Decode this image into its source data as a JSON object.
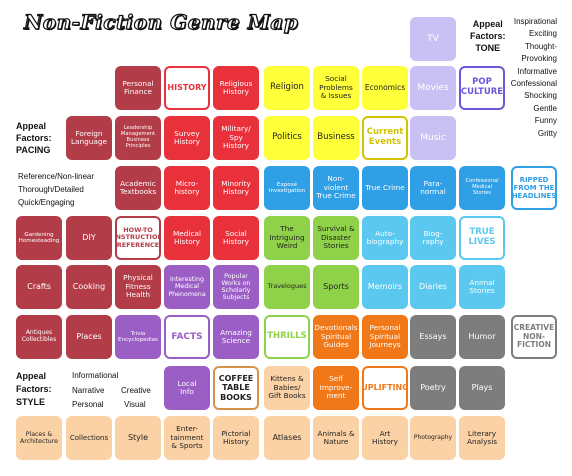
{
  "title": "Non-Fiction Genre Map",
  "appeal_factors": {
    "tone": {
      "label": "Appeal\nFactors:\nTONE",
      "items": [
        "Inspirational",
        "Exciting",
        "Thought-\nProvoking",
        "Informative",
        "Confessional",
        "Shocking",
        "Gentle",
        "Funny",
        "Gritty"
      ]
    },
    "pacing": {
      "label": "Appeal\nFactors:\nPACING",
      "items": [
        "Reference/Non-linear",
        "Thorough/Detailed",
        "Quick/Engaging"
      ]
    },
    "style": {
      "label": "Appeal\nFactors:\nSTYLE",
      "items": [
        "Informational",
        "Narrative",
        "Creative",
        "Personal",
        "Visual"
      ]
    }
  },
  "colors": {
    "maroon": "#b23c48",
    "red": "#e8313b",
    "yellow": "#ffff3a",
    "blue": "#2f9fe6",
    "lightblue": "#5bc8ef",
    "green": "#8fd24a",
    "orange": "#f07818",
    "purple": "#9a5ec4",
    "gray": "#7d7d7d",
    "lavender": "#c9c1f3",
    "peach": "#fbd2a6",
    "pink": "#f6b2b2"
  },
  "tiles": [
    {
      "id": "tv",
      "label": "TV",
      "color": "lavender"
    },
    {
      "id": "personal-finance",
      "label": "Personal\nFinance",
      "color": "maroon"
    },
    {
      "id": "history",
      "label": "HISTORY",
      "color": "red",
      "outline": true
    },
    {
      "id": "religious-history",
      "label": "Religious\nHistory",
      "color": "red"
    },
    {
      "id": "religion",
      "label": "Religion",
      "color": "yellow"
    },
    {
      "id": "social-problems",
      "label": "Social\nProblems\n& Issues",
      "color": "yellow"
    },
    {
      "id": "economics",
      "label": "Economics",
      "color": "yellow"
    },
    {
      "id": "movies",
      "label": "Movies",
      "color": "lavender"
    },
    {
      "id": "pop-culture",
      "label": "POP\nCULTURE",
      "color": "lavender",
      "outline": true
    },
    {
      "id": "foreign-language",
      "label": "Foreign\nLanguage",
      "color": "maroon"
    },
    {
      "id": "leadership",
      "label": "Leadership\nManagement\nBusiness\nPrinciples",
      "color": "maroon"
    },
    {
      "id": "survey-history",
      "label": "Survey\nHistory",
      "color": "red"
    },
    {
      "id": "military-history",
      "label": "Military/\nSpy\nHistory",
      "color": "red"
    },
    {
      "id": "politics",
      "label": "Politics",
      "color": "yellow"
    },
    {
      "id": "business",
      "label": "Business",
      "color": "yellow"
    },
    {
      "id": "current-events",
      "label": "Current\nEvents",
      "color": "yellow",
      "outline": true
    },
    {
      "id": "music",
      "label": "Music",
      "color": "lavender"
    },
    {
      "id": "academic-textbooks",
      "label": "Academic\nTextbooks",
      "color": "maroon"
    },
    {
      "id": "micro-history",
      "label": "Micro-\nhistory",
      "color": "red"
    },
    {
      "id": "minority-history",
      "label": "Minority\nHistory",
      "color": "red"
    },
    {
      "id": "expose",
      "label": "Exposé\nInvestigation",
      "color": "blue"
    },
    {
      "id": "non-violent-true-crime",
      "label": "Non-\nviolent\nTrue Crime",
      "color": "blue"
    },
    {
      "id": "true-crime",
      "label": "True Crime",
      "color": "blue"
    },
    {
      "id": "paranormal",
      "label": "Para-\nnormal",
      "color": "blue"
    },
    {
      "id": "confessional-medical",
      "label": "Confessional\nMedical\nStories",
      "color": "blue"
    },
    {
      "id": "ripped-headlines",
      "label": "RIPPED\nFROM THE\nHEADLINES",
      "color": "blue",
      "outline": true
    },
    {
      "id": "gardening",
      "label": "Gardening\nHomesteading",
      "color": "maroon"
    },
    {
      "id": "diy",
      "label": "DIY",
      "color": "maroon"
    },
    {
      "id": "how-to",
      "label": "HOW-TO\nINSTRUCTION\nREFERENCE",
      "color": "maroon",
      "outline": true
    },
    {
      "id": "medical-history",
      "label": "Medical\nHistory",
      "color": "red"
    },
    {
      "id": "social-history",
      "label": "Social\nHistory",
      "color": "red"
    },
    {
      "id": "intriguing-weird",
      "label": "The\nIntriguing\nWeird",
      "color": "green"
    },
    {
      "id": "survival-disaster",
      "label": "Survival &\nDisaster\nStories",
      "color": "green"
    },
    {
      "id": "autobiography",
      "label": "Auto-\nbiography",
      "color": "lightblue"
    },
    {
      "id": "biography",
      "label": "Biog-\nraphy",
      "color": "lightblue"
    },
    {
      "id": "true-lives",
      "label": "TRUE\nLIVES",
      "color": "lightblue",
      "outline": true
    },
    {
      "id": "crafts",
      "label": "Crafts",
      "color": "maroon"
    },
    {
      "id": "cooking",
      "label": "Cooking",
      "color": "maroon"
    },
    {
      "id": "physical-fitness",
      "label": "Physical\nFitness\nHealth",
      "color": "maroon"
    },
    {
      "id": "interesting-medical",
      "label": "Interesting\nMedical\nPhenomena",
      "color": "purple"
    },
    {
      "id": "popular-scholarly",
      "label": "Popular\nWorks on\nScholarly\nSubjects",
      "color": "purple"
    },
    {
      "id": "travelogues",
      "label": "Travelogues",
      "color": "green"
    },
    {
      "id": "sports",
      "label": "Sports",
      "color": "green"
    },
    {
      "id": "memoirs",
      "label": "Memoirs",
      "color": "lightblue"
    },
    {
      "id": "diaries",
      "label": "Diaries",
      "color": "lightblue"
    },
    {
      "id": "animal-stories",
      "label": "Animal\nStories",
      "color": "lightblue"
    },
    {
      "id": "antiques",
      "label": "Antiques\nCollectibles",
      "color": "maroon"
    },
    {
      "id": "places",
      "label": "Places",
      "color": "maroon"
    },
    {
      "id": "trivia",
      "label": "Trivia\nEncyclopedias",
      "color": "purple"
    },
    {
      "id": "facts",
      "label": "FACTS",
      "color": "purple",
      "outline": true
    },
    {
      "id": "amazing-science",
      "label": "Amazing\nScience",
      "color": "purple"
    },
    {
      "id": "thrills",
      "label": "THRILLS",
      "color": "green",
      "outline": true
    },
    {
      "id": "devotionals",
      "label": "Devotionals\nSpiritual\nGuides",
      "color": "orange"
    },
    {
      "id": "personal-spiritual",
      "label": "Personal\nSpiritual\nJourneys",
      "color": "orange"
    },
    {
      "id": "essays",
      "label": "Essays",
      "color": "gray"
    },
    {
      "id": "humor",
      "label": "Humor",
      "color": "gray"
    },
    {
      "id": "creative-nonfiction",
      "label": "CREATIVE\nNON-\nFICTION",
      "color": "gray",
      "outline": true
    },
    {
      "id": "local-info",
      "label": "Local\nInfo",
      "color": "purple"
    },
    {
      "id": "coffee-table",
      "label": "COFFEE\nTABLE\nBOOKS",
      "color": "peach",
      "outline": true
    },
    {
      "id": "kittens-babies",
      "label": "Kittens &\nBabies/\nGift Books",
      "color": "peach"
    },
    {
      "id": "self-improvement",
      "label": "Self\nImprove-\nment",
      "color": "orange"
    },
    {
      "id": "uplifting",
      "label": "UPLIFTING",
      "color": "orange",
      "outline": true
    },
    {
      "id": "poetry",
      "label": "Poetry",
      "color": "gray"
    },
    {
      "id": "plays",
      "label": "Plays",
      "color": "gray"
    },
    {
      "id": "places-architecture",
      "label": "Places &\nArchitecture",
      "color": "peach"
    },
    {
      "id": "collections",
      "label": "Collections",
      "color": "peach"
    },
    {
      "id": "style",
      "label": "Style",
      "color": "peach"
    },
    {
      "id": "entertainment-sports",
      "label": "Enter-\ntainment\n& Sports",
      "color": "peach"
    },
    {
      "id": "pictorial-history",
      "label": "Pictorial\nHistory",
      "color": "peach"
    },
    {
      "id": "atlases",
      "label": "Atlases",
      "color": "peach"
    },
    {
      "id": "animals-nature",
      "label": "Animals &\nNature",
      "color": "peach"
    },
    {
      "id": "art-history",
      "label": "Art\nHistory",
      "color": "peach"
    },
    {
      "id": "photography",
      "label": "Photography",
      "color": "peach"
    },
    {
      "id": "literary-analysis",
      "label": "Literary\nAnalysis",
      "color": "peach"
    }
  ]
}
